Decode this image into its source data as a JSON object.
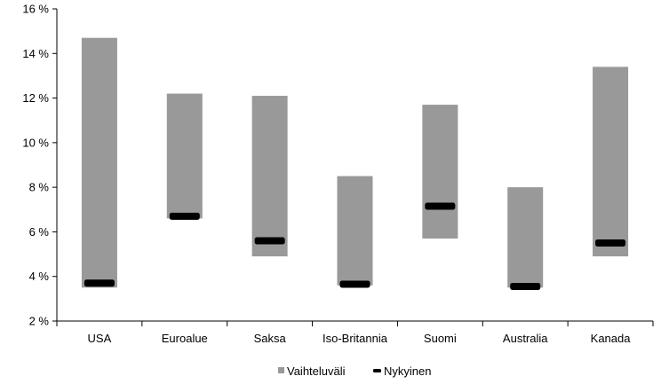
{
  "chart_data": {
    "type": "bar",
    "categories": [
      "USA",
      "Euroalue",
      "Saksa",
      "Iso-Britannia",
      "Suomi",
      "Australia",
      "Kanada"
    ],
    "series": [
      {
        "name": "Vaihteluväli",
        "type": "range",
        "low": [
          3.5,
          6.6,
          4.9,
          3.6,
          5.7,
          3.5,
          4.9
        ],
        "high": [
          14.7,
          12.2,
          12.1,
          8.5,
          11.7,
          8.0,
          13.4
        ]
      },
      {
        "name": "Nykyinen",
        "type": "marker",
        "values": [
          3.7,
          6.7,
          5.6,
          3.65,
          7.15,
          3.55,
          5.5
        ]
      }
    ],
    "y_ticks": [
      "2 %",
      "4 %",
      "6 %",
      "8 %",
      "10 %",
      "12 %",
      "14 %",
      "16 %"
    ],
    "ylim": [
      2,
      16
    ],
    "xlabel": "",
    "ylabel": "",
    "title": "",
    "grid": false,
    "legend_position": "bottom",
    "colors": {
      "range": "#999999",
      "marker": "#000000",
      "axis": "#000000"
    }
  }
}
